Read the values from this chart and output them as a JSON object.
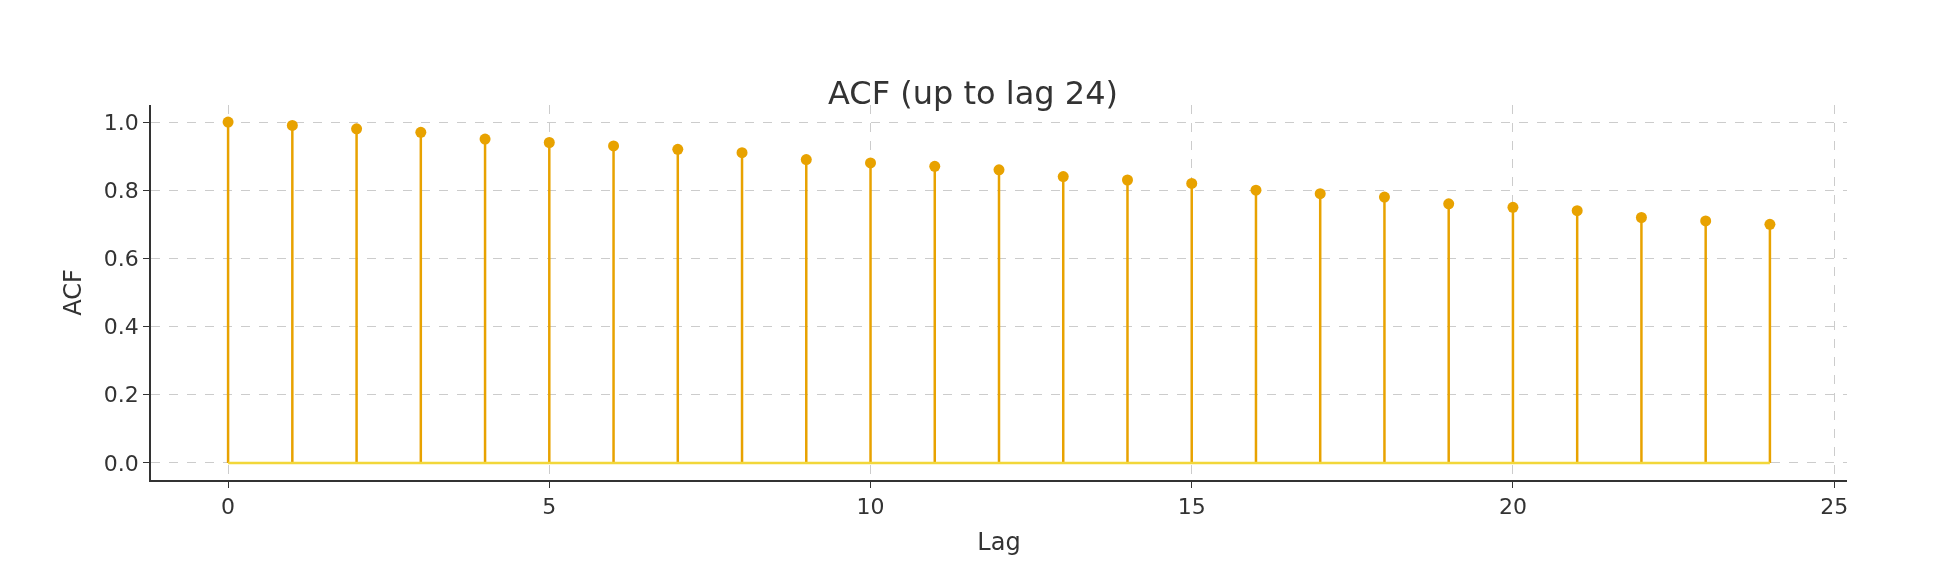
{
  "chart_data": {
    "type": "lollipop",
    "title": "ACF (up to lag 24)",
    "xlabel": "Lag",
    "ylabel": "ACF",
    "x": [
      0,
      1,
      2,
      3,
      4,
      5,
      6,
      7,
      8,
      9,
      10,
      11,
      12,
      13,
      14,
      15,
      16,
      17,
      18,
      19,
      20,
      21,
      22,
      23,
      24
    ],
    "values": [
      1.0,
      0.99,
      0.98,
      0.97,
      0.95,
      0.94,
      0.93,
      0.92,
      0.91,
      0.89,
      0.88,
      0.87,
      0.86,
      0.84,
      0.83,
      0.82,
      0.8,
      0.79,
      0.78,
      0.76,
      0.75,
      0.74,
      0.72,
      0.71,
      0.7
    ],
    "color": "#e8a200",
    "marker": "circle",
    "ref_lines": [
      {
        "axis": "y",
        "value": 0,
        "label": null,
        "color": "#f2d73a"
      }
    ],
    "xlim": [
      -1.2,
      25.2
    ],
    "xticks": [
      0,
      5,
      10,
      15,
      20,
      25
    ],
    "ylim": [
      -0.05,
      1.05
    ],
    "yticks": [
      {
        "value": 0,
        "label": "0.0"
      },
      0.2,
      0.4,
      0.6,
      0.8,
      {
        "value": 1,
        "label": "1.0"
      }
    ],
    "grid": true
  }
}
